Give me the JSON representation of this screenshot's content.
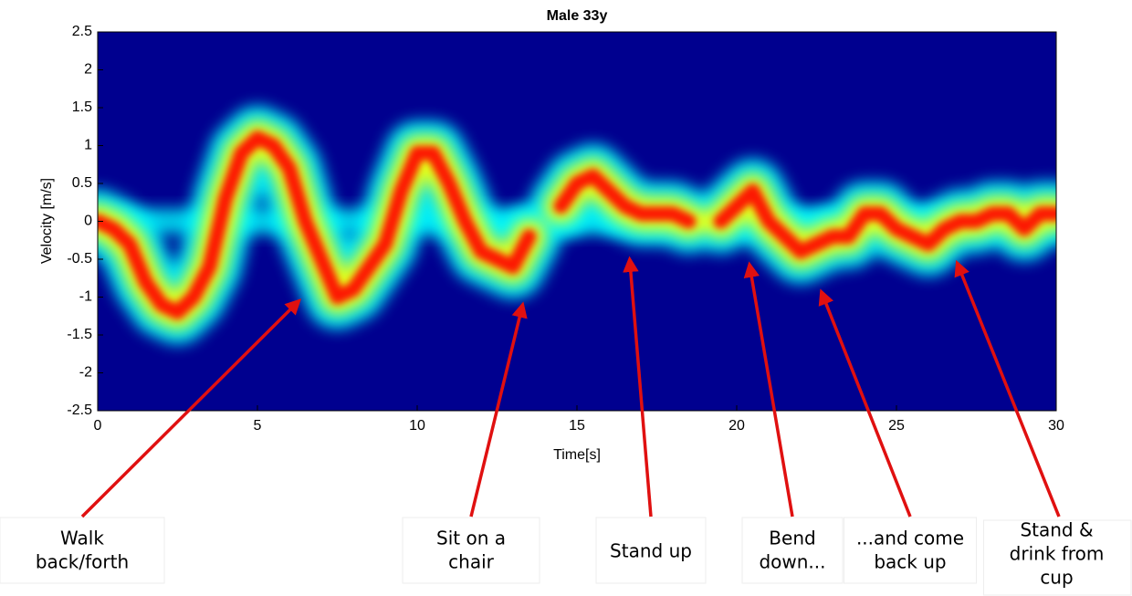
{
  "chart_data": {
    "type": "spectrogram",
    "title": "Male 33y",
    "xlabel": "Time[s]",
    "ylabel": "Velocity [m/s]",
    "xlim": [
      0,
      30
    ],
    "ylim": [
      -2.5,
      2.5
    ],
    "xticks": [
      0,
      5,
      10,
      15,
      20,
      25,
      30
    ],
    "yticks": [
      -2.5,
      -2,
      -1.5,
      -1,
      -0.5,
      0,
      0.5,
      1,
      1.5,
      2,
      2.5
    ],
    "colormap": [
      "#00008f",
      "#00ffff",
      "#ffff00",
      "#ff0000"
    ],
    "x": [
      0,
      0.5,
      1,
      1.5,
      2,
      2.5,
      3,
      3.5,
      4,
      4.5,
      5,
      5.5,
      6,
      6.5,
      7,
      7.5,
      8,
      8.5,
      9,
      9.5,
      10,
      10.5,
      11,
      11.5,
      12,
      12.5,
      13,
      13.5,
      14,
      14.5,
      15,
      15.5,
      16,
      16.5,
      17,
      17.5,
      18,
      18.5,
      19,
      19.5,
      20,
      20.5,
      21,
      21.5,
      22,
      22.5,
      23,
      23.5,
      24,
      24.5,
      25,
      25.5,
      26,
      26.5,
      27,
      27.5,
      28,
      28.5,
      29,
      29.5,
      30
    ],
    "values": [
      0,
      -0.1,
      -0.3,
      -0.8,
      -1.1,
      -1.2,
      -1.0,
      -0.6,
      0.3,
      0.9,
      1.1,
      1.0,
      0.7,
      0.0,
      -0.5,
      -1.0,
      -0.9,
      -0.6,
      -0.3,
      0.4,
      0.9,
      0.9,
      0.5,
      0.0,
      -0.4,
      -0.5,
      -0.6,
      -0.2,
      null,
      0.2,
      0.5,
      0.6,
      0.4,
      0.2,
      0.1,
      0.1,
      0.1,
      0,
      null,
      0,
      0.2,
      0.4,
      0.0,
      -0.2,
      -0.4,
      -0.3,
      -0.2,
      -0.2,
      0.1,
      0.1,
      -0.1,
      -0.2,
      -0.3,
      -0.1,
      0,
      0,
      0.1,
      0.1,
      -0.1,
      0.1,
      0.1
    ],
    "arrow_color": "#e01010",
    "annotations": [
      {
        "lines": [
          "Walk",
          "back/forth"
        ],
        "x": 6.3,
        "y": -1.05
      },
      {
        "lines": [
          "Sit on a",
          "chair"
        ],
        "x": 13.3,
        "y": -1.1
      },
      {
        "lines": [
          "Stand up"
        ],
        "x": 16.65,
        "y": -0.5
      },
      {
        "lines": [
          "Bend",
          "down..."
        ],
        "x": 20.4,
        "y": -0.57
      },
      {
        "lines": [
          "...and come",
          "back up"
        ],
        "x": 22.65,
        "y": -0.93
      },
      {
        "lines": [
          "Stand &",
          "drink from",
          "cup"
        ],
        "x": 26.9,
        "y": -0.55
      }
    ]
  }
}
